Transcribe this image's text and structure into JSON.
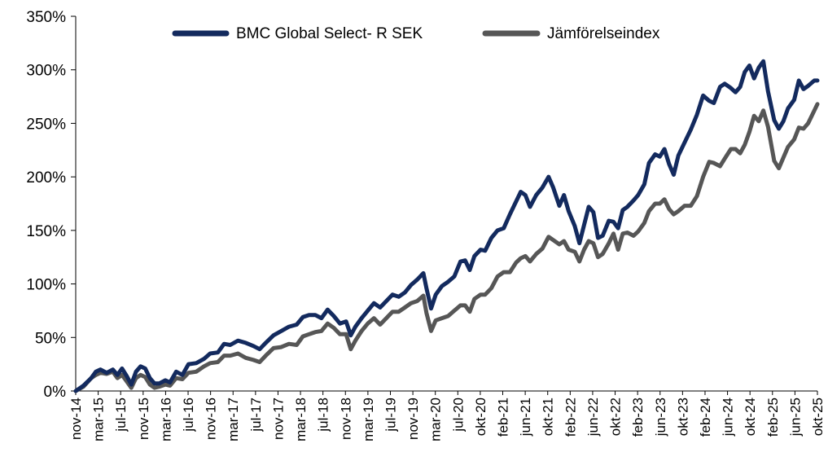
{
  "chart_data": {
    "type": "line",
    "title": "",
    "xlabel": "",
    "ylabel": "",
    "ylim": [
      0,
      350
    ],
    "yticks": [
      "0%",
      "50%",
      "100%",
      "150%",
      "200%",
      "250%",
      "300%",
      "350%"
    ],
    "xticks": [
      "nov-14",
      "mar-15",
      "jul-15",
      "nov-15",
      "mar-16",
      "jul-16",
      "nov-16",
      "mar-17",
      "jul-17",
      "nov-17",
      "mar-18",
      "jul-18",
      "nov-18",
      "mar-19",
      "jul-19",
      "nov-19",
      "mar-20",
      "jul-20",
      "okt-20",
      "feb-21",
      "jun-21",
      "okt-21",
      "feb-22",
      "jun-22",
      "okt-22",
      "feb-23",
      "jun-23",
      "okt-23",
      "feb-24",
      "jun-24",
      "okt-24",
      "feb-25",
      "jun-25",
      "okt-25"
    ],
    "grid": false,
    "legend_position": "top",
    "series": [
      {
        "name": "BMC Global Select- R SEK",
        "color": "#132A5E",
        "points": [
          [
            0,
            0
          ],
          [
            0.5,
            5
          ],
          [
            1,
            12
          ],
          [
            1.3,
            18
          ],
          [
            1.6,
            20
          ],
          [
            2,
            17
          ],
          [
            2.4,
            20
          ],
          [
            2.7,
            15
          ],
          [
            3,
            21
          ],
          [
            3.3,
            14
          ],
          [
            3.6,
            6
          ],
          [
            3.9,
            18
          ],
          [
            4.2,
            23
          ],
          [
            4.5,
            21
          ],
          [
            4.8,
            12
          ],
          [
            5.1,
            7
          ],
          [
            5.4,
            7
          ],
          [
            5.8,
            10
          ],
          [
            6.1,
            8
          ],
          [
            6.5,
            18
          ],
          [
            6.9,
            15
          ],
          [
            7.3,
            25
          ],
          [
            7.8,
            26
          ],
          [
            8.3,
            30
          ],
          [
            8.7,
            35
          ],
          [
            9.2,
            36
          ],
          [
            9.6,
            44
          ],
          [
            10,
            43
          ],
          [
            10.5,
            47
          ],
          [
            11,
            45
          ],
          [
            11.5,
            42
          ],
          [
            11.9,
            39
          ],
          [
            12.3,
            45
          ],
          [
            12.8,
            52
          ],
          [
            13.3,
            56
          ],
          [
            13.8,
            60
          ],
          [
            14.3,
            62
          ],
          [
            14.7,
            69
          ],
          [
            15.1,
            71
          ],
          [
            15.5,
            71
          ],
          [
            15.9,
            68
          ],
          [
            16.3,
            76
          ],
          [
            16.7,
            70
          ],
          [
            17.1,
            63
          ],
          [
            17.5,
            65
          ],
          [
            17.8,
            52
          ],
          [
            18.1,
            60
          ],
          [
            18.5,
            68
          ],
          [
            18.9,
            75
          ],
          [
            19.3,
            82
          ],
          [
            19.7,
            78
          ],
          [
            20.1,
            84
          ],
          [
            20.5,
            90
          ],
          [
            20.9,
            88
          ],
          [
            21.3,
            92
          ],
          [
            21.7,
            99
          ],
          [
            22.1,
            104
          ],
          [
            22.5,
            110
          ],
          [
            22.7,
            96
          ],
          [
            23,
            77
          ],
          [
            23.3,
            90
          ],
          [
            23.7,
            98
          ],
          [
            24.1,
            102
          ],
          [
            24.5,
            107
          ],
          [
            24.9,
            121
          ],
          [
            25.2,
            122
          ],
          [
            25.5,
            113
          ],
          [
            25.8,
            126
          ],
          [
            26.2,
            132
          ],
          [
            26.5,
            131
          ],
          [
            26.9,
            143
          ],
          [
            27.3,
            150
          ],
          [
            27.7,
            152
          ],
          [
            28.1,
            165
          ],
          [
            28.5,
            177
          ],
          [
            28.8,
            186
          ],
          [
            29.1,
            183
          ],
          [
            29.4,
            172
          ],
          [
            29.8,
            183
          ],
          [
            30.2,
            190
          ],
          [
            30.6,
            200
          ],
          [
            30.9,
            190
          ],
          [
            31.3,
            173
          ],
          [
            31.6,
            183
          ],
          [
            31.9,
            168
          ],
          [
            32.3,
            154
          ],
          [
            32.6,
            138
          ],
          [
            32.9,
            155
          ],
          [
            33.2,
            172
          ],
          [
            33.5,
            167
          ],
          [
            33.8,
            143
          ],
          [
            34.1,
            145
          ],
          [
            34.5,
            159
          ],
          [
            34.8,
            158
          ],
          [
            35.1,
            152
          ],
          [
            35.4,
            169
          ],
          [
            35.7,
            172
          ],
          [
            36.1,
            178
          ],
          [
            36.4,
            183
          ],
          [
            36.8,
            193
          ],
          [
            37.1,
            213
          ],
          [
            37.5,
            221
          ],
          [
            37.8,
            219
          ],
          [
            38.1,
            226
          ],
          [
            38.4,
            212
          ],
          [
            38.7,
            202
          ],
          [
            39,
            220
          ],
          [
            39.4,
            232
          ],
          [
            39.8,
            244
          ],
          [
            40.2,
            258
          ],
          [
            40.6,
            276
          ],
          [
            41,
            271
          ],
          [
            41.3,
            269
          ],
          [
            41.7,
            284
          ],
          [
            42,
            287
          ],
          [
            42.4,
            283
          ],
          [
            42.7,
            279
          ],
          [
            43,
            284
          ],
          [
            43.3,
            298
          ],
          [
            43.6,
            304
          ],
          [
            43.9,
            292
          ],
          [
            44.2,
            302
          ],
          [
            44.5,
            308
          ],
          [
            44.8,
            280
          ],
          [
            45.2,
            253
          ],
          [
            45.5,
            245
          ],
          [
            45.8,
            252
          ],
          [
            46.1,
            264
          ],
          [
            46.5,
            272
          ],
          [
            46.8,
            290
          ],
          [
            47.1,
            282
          ],
          [
            47.4,
            285
          ],
          [
            47.8,
            290
          ],
          [
            48,
            290
          ]
        ]
      },
      {
        "name": "Jämförelseindex",
        "color": "#565656",
        "points": [
          [
            0,
            0
          ],
          [
            0.5,
            4
          ],
          [
            1,
            12
          ],
          [
            1.3,
            15
          ],
          [
            1.6,
            17
          ],
          [
            2,
            16
          ],
          [
            2.4,
            18
          ],
          [
            2.7,
            12
          ],
          [
            3,
            15
          ],
          [
            3.3,
            9
          ],
          [
            3.6,
            3
          ],
          [
            3.9,
            12
          ],
          [
            4.2,
            15
          ],
          [
            4.5,
            13
          ],
          [
            4.8,
            6
          ],
          [
            5.1,
            3
          ],
          [
            5.4,
            4
          ],
          [
            5.8,
            6
          ],
          [
            6.1,
            5
          ],
          [
            6.5,
            12
          ],
          [
            6.9,
            11
          ],
          [
            7.3,
            17
          ],
          [
            7.8,
            18
          ],
          [
            8.3,
            23
          ],
          [
            8.7,
            26
          ],
          [
            9.2,
            27
          ],
          [
            9.6,
            33
          ],
          [
            10,
            33
          ],
          [
            10.5,
            35
          ],
          [
            11,
            31
          ],
          [
            11.5,
            29
          ],
          [
            11.9,
            27
          ],
          [
            12.3,
            33
          ],
          [
            12.8,
            40
          ],
          [
            13.3,
            41
          ],
          [
            13.8,
            44
          ],
          [
            14.3,
            43
          ],
          [
            14.7,
            51
          ],
          [
            15.1,
            53
          ],
          [
            15.5,
            55
          ],
          [
            15.9,
            56
          ],
          [
            16.3,
            63
          ],
          [
            16.7,
            59
          ],
          [
            17.1,
            53
          ],
          [
            17.5,
            53
          ],
          [
            17.8,
            39
          ],
          [
            18.1,
            47
          ],
          [
            18.5,
            56
          ],
          [
            18.9,
            63
          ],
          [
            19.3,
            68
          ],
          [
            19.7,
            62
          ],
          [
            20.1,
            68
          ],
          [
            20.5,
            74
          ],
          [
            20.9,
            74
          ],
          [
            21.3,
            78
          ],
          [
            21.7,
            82
          ],
          [
            22.1,
            84
          ],
          [
            22.5,
            89
          ],
          [
            22.7,
            73
          ],
          [
            23,
            56
          ],
          [
            23.3,
            66
          ],
          [
            23.7,
            68
          ],
          [
            24.1,
            70
          ],
          [
            24.5,
            75
          ],
          [
            24.9,
            80
          ],
          [
            25.2,
            80
          ],
          [
            25.5,
            74
          ],
          [
            25.8,
            86
          ],
          [
            26.2,
            90
          ],
          [
            26.5,
            90
          ],
          [
            26.9,
            96
          ],
          [
            27.3,
            107
          ],
          [
            27.7,
            111
          ],
          [
            28.1,
            111
          ],
          [
            28.5,
            120
          ],
          [
            28.8,
            124
          ],
          [
            29.1,
            126
          ],
          [
            29.4,
            121
          ],
          [
            29.8,
            128
          ],
          [
            30.2,
            133
          ],
          [
            30.6,
            144
          ],
          [
            30.9,
            141
          ],
          [
            31.3,
            137
          ],
          [
            31.6,
            140
          ],
          [
            31.9,
            132
          ],
          [
            32.3,
            130
          ],
          [
            32.6,
            121
          ],
          [
            32.9,
            132
          ],
          [
            33.2,
            140
          ],
          [
            33.5,
            138
          ],
          [
            33.8,
            125
          ],
          [
            34.1,
            128
          ],
          [
            34.5,
            138
          ],
          [
            34.8,
            147
          ],
          [
            35.1,
            132
          ],
          [
            35.4,
            147
          ],
          [
            35.7,
            148
          ],
          [
            36.1,
            145
          ],
          [
            36.4,
            149
          ],
          [
            36.8,
            157
          ],
          [
            37.1,
            168
          ],
          [
            37.5,
            175
          ],
          [
            37.8,
            175
          ],
          [
            38.1,
            179
          ],
          [
            38.4,
            170
          ],
          [
            38.7,
            165
          ],
          [
            39,
            168
          ],
          [
            39.4,
            173
          ],
          [
            39.8,
            173
          ],
          [
            40.2,
            182
          ],
          [
            40.6,
            200
          ],
          [
            41,
            214
          ],
          [
            41.3,
            213
          ],
          [
            41.7,
            210
          ],
          [
            42,
            217
          ],
          [
            42.4,
            226
          ],
          [
            42.7,
            226
          ],
          [
            43,
            222
          ],
          [
            43.3,
            230
          ],
          [
            43.6,
            242
          ],
          [
            43.9,
            257
          ],
          [
            44.2,
            252
          ],
          [
            44.5,
            262
          ],
          [
            44.8,
            247
          ],
          [
            45.2,
            215
          ],
          [
            45.5,
            208
          ],
          [
            45.8,
            218
          ],
          [
            46.1,
            228
          ],
          [
            46.5,
            235
          ],
          [
            46.8,
            246
          ],
          [
            47.1,
            245
          ],
          [
            47.4,
            250
          ],
          [
            47.8,
            262
          ],
          [
            48,
            268
          ]
        ]
      }
    ]
  }
}
